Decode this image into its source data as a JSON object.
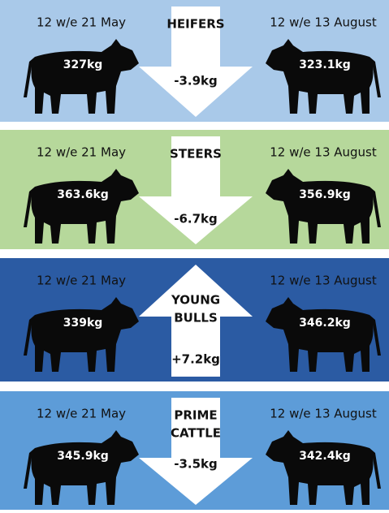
{
  "panels": [
    {
      "title_lines": [
        "HEIFERS"
      ],
      "change": "-3.9kg",
      "arrow": "down",
      "color": "#a9c9e9",
      "left": {
        "period": "12 w/e 21 May",
        "weight": "327kg"
      },
      "right": {
        "period": "12 w/e 13 August",
        "weight": "323.1kg"
      }
    },
    {
      "title_lines": [
        "STEERS"
      ],
      "change": "-6.7kg",
      "arrow": "down",
      "color": "#b6d89b",
      "left": {
        "period": "12 w/e 21 May",
        "weight": "363.6kg"
      },
      "right": {
        "period": "12 w/e 13 August",
        "weight": "356.9kg"
      }
    },
    {
      "title_lines": [
        "YOUNG",
        "BULLS"
      ],
      "change": "+7.2kg",
      "arrow": "up",
      "color": "#2b5ba3",
      "left": {
        "period": "12 w/e 21 May",
        "weight": "339kg"
      },
      "right": {
        "period": "12 w/e 13 August",
        "weight": "346.2kg"
      }
    },
    {
      "title_lines": [
        "PRIME",
        "CATTLE"
      ],
      "change": "-3.5kg",
      "arrow": "down",
      "color": "#5d9cd8",
      "left": {
        "period": "12 w/e 21 May",
        "weight": "345.9kg"
      },
      "right": {
        "period": "12 w/e 13 August",
        "weight": "342.4kg"
      }
    }
  ]
}
